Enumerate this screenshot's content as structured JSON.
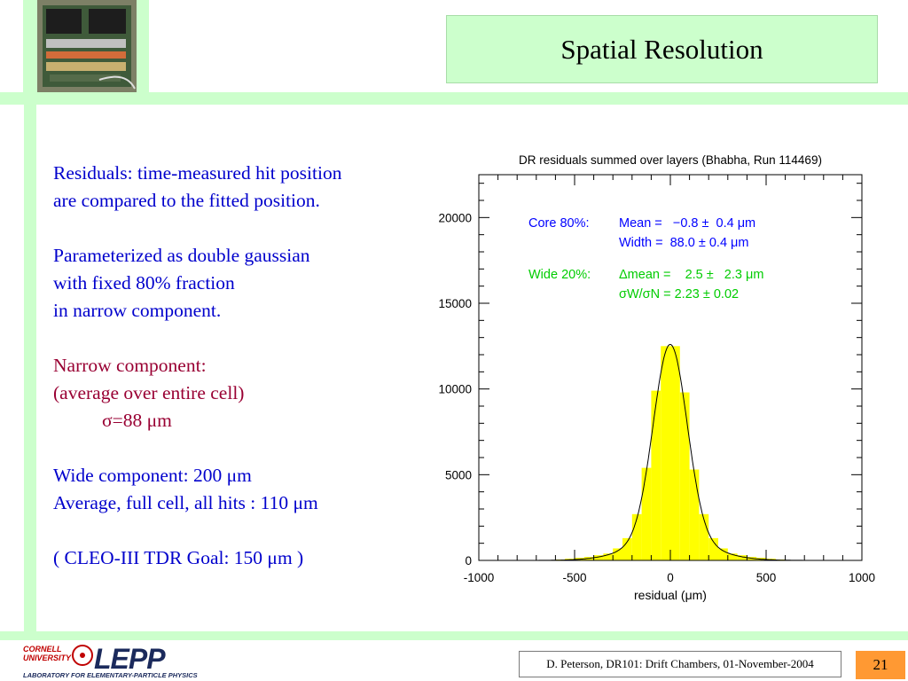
{
  "slide": {
    "title": "Spatial Resolution",
    "page_number": "21",
    "footer": "D. Peterson,  DR101: Drift Chambers,  01-November-2004"
  },
  "logo": {
    "cornell": "CORNELL\nUNIVERSITY",
    "lepp": "LEPP",
    "lab": "LABORATORY FOR ELEMENTARY-PARTICLE PHYSICS"
  },
  "text": {
    "p1_l1": "Residuals: time-measured hit position",
    "p1_l2": "are compared to the fitted position.",
    "p2_l1": "Parameterized as double gaussian",
    "p2_l2": "with fixed 80% fraction",
    "p2_l3": "in narrow component.",
    "p3_l1": "Narrow component:",
    "p3_l2": "(average over entire cell)",
    "p3_l3": "σ=88 μm",
    "p4_l1": "Wide component: 200 μm",
    "p4_l2": "Average, full cell, all hits : 110 μm",
    "p5_l1": "( CLEO-III TDR Goal: 150 μm )"
  },
  "colors": {
    "accent_green": "#ccffcc",
    "title_blue": "#0000cc",
    "title_red": "#990033",
    "histogram_fill": "#ffff00",
    "core_text": "#0000ff",
    "wide_text": "#00cc00",
    "page_box": "#ff9933"
  },
  "chart_data": {
    "type": "bar",
    "title": "DR residuals summed over layers (Bhabha, Run 114469)",
    "xlabel": "residual (μm)",
    "ylabel": "",
    "xlim": [
      -1000,
      1000
    ],
    "ylim": [
      0,
      22500
    ],
    "x_ticks": [
      "-1000",
      "-500",
      "0",
      "500",
      "1000"
    ],
    "y_ticks": [
      "0",
      "5000",
      "10000",
      "15000",
      "20000"
    ],
    "histogram": {
      "bin_width": 50,
      "bin_centers": [
        -975,
        -925,
        -875,
        -825,
        -775,
        -725,
        -675,
        -625,
        -575,
        -525,
        -475,
        -425,
        -375,
        -325,
        -275,
        -225,
        -175,
        -125,
        -75,
        -25,
        25,
        75,
        125,
        175,
        225,
        275,
        325,
        375,
        425,
        475,
        525,
        575,
        625,
        675,
        725,
        775,
        825,
        875,
        925,
        975
      ],
      "counts": [
        0,
        0,
        0,
        0,
        0,
        0,
        0,
        0,
        50,
        100,
        150,
        200,
        300,
        400,
        700,
        1300,
        2700,
        5400,
        9900,
        12500,
        12500,
        9800,
        5300,
        2700,
        1300,
        700,
        400,
        300,
        200,
        150,
        100,
        50,
        0,
        0,
        0,
        0,
        0,
        0,
        0,
        0
      ]
    },
    "fit_curve": {
      "description_free": true,
      "core": {
        "fraction": 0.8,
        "mean": -0.8,
        "sigma": 88.0
      },
      "wide": {
        "fraction": 0.2,
        "mean_offset": 2.5,
        "sigma_ratio": 2.23
      },
      "peak": 12600
    },
    "annotations": {
      "core_label": "Core 80%:",
      "core_line1": "Mean =   −0.8 ±  0.4 μm",
      "core_line2": "Width =  88.0 ± 0.4 μm",
      "wide_label": "Wide 20%:",
      "wide_line1": "Δmean =    2.5 ±   2.3 μm",
      "wide_line2": "σW/σN = 2.23 ± 0.02"
    }
  }
}
